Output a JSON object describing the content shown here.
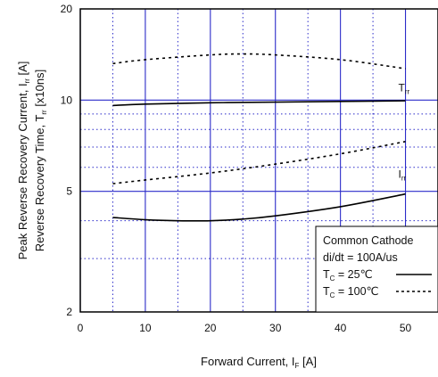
{
  "chart_data": {
    "type": "line",
    "x_axis": {
      "label_main": "Forward  Current,  I",
      "label_sub": "F",
      "label_unit": "  [A]",
      "range": [
        0,
        55
      ],
      "major_ticks": [
        0,
        10,
        20,
        30,
        40,
        50
      ],
      "minor_gridlines": [
        5,
        15,
        25,
        35,
        45
      ],
      "tick_labels": [
        "0",
        "10",
        "20",
        "30",
        "40",
        "50"
      ]
    },
    "y_axis": {
      "scale": "log",
      "range": [
        2,
        20
      ],
      "major_ticks": [
        2,
        5,
        10,
        20
      ],
      "minor_gridlines": [
        3,
        4,
        6,
        7,
        8,
        9
      ],
      "tick_labels": [
        "2",
        "5",
        "10",
        "20"
      ],
      "label_line1_main": "Peak  Reverse  Recovery  Current,  I",
      "label_line1_sub": "rr",
      "label_line1_unit": "  [A]",
      "label_line2_main": "Reverse  Recovery  Time,  T",
      "label_line2_sub": "rr",
      "label_line2_unit": "  [x10ns]"
    },
    "grid": true,
    "series": [
      {
        "quantity": "Trr",
        "condition": "25C",
        "style": "solid",
        "x": [
          5,
          10,
          20,
          30,
          40,
          50
        ],
        "y": [
          9.6,
          9.7,
          9.8,
          9.85,
          9.9,
          9.95
        ]
      },
      {
        "quantity": "Trr",
        "condition": "100C",
        "style": "dashed",
        "x": [
          5,
          10,
          20,
          25,
          30,
          40,
          50
        ],
        "y": [
          13.2,
          13.6,
          14.1,
          14.2,
          14.1,
          13.6,
          12.7
        ]
      },
      {
        "quantity": "Irr",
        "condition": "25C",
        "style": "solid",
        "x": [
          5,
          10,
          15,
          20,
          25,
          30,
          40,
          50
        ],
        "y": [
          4.1,
          4.03,
          4.0,
          4.0,
          4.05,
          4.15,
          4.45,
          4.9
        ]
      },
      {
        "quantity": "Irr",
        "condition": "100C",
        "style": "dashed",
        "x": [
          5,
          10,
          20,
          30,
          40,
          50
        ],
        "y": [
          5.3,
          5.45,
          5.75,
          6.15,
          6.65,
          7.3
        ]
      }
    ],
    "annotations": [
      {
        "main": "T",
        "sub": "rr",
        "x": 50,
        "y": 10.7
      },
      {
        "main": "I",
        "sub": "rr",
        "x": 50,
        "y": 5.55
      }
    ],
    "legend": {
      "placement": "bottom-right",
      "title": "Common Cathode",
      "condition": "di/dt = 100A/us",
      "entries": [
        {
          "label_main": "T",
          "label_sub": "C",
          "label_rest": " =   25℃",
          "style": "solid"
        },
        {
          "label_main": "T",
          "label_sub": "C",
          "label_rest": " = 100℃",
          "style": "dashed"
        }
      ]
    },
    "colors": {
      "grid": "#2b2bc9",
      "line": "#000000",
      "frame": "#000000"
    }
  }
}
